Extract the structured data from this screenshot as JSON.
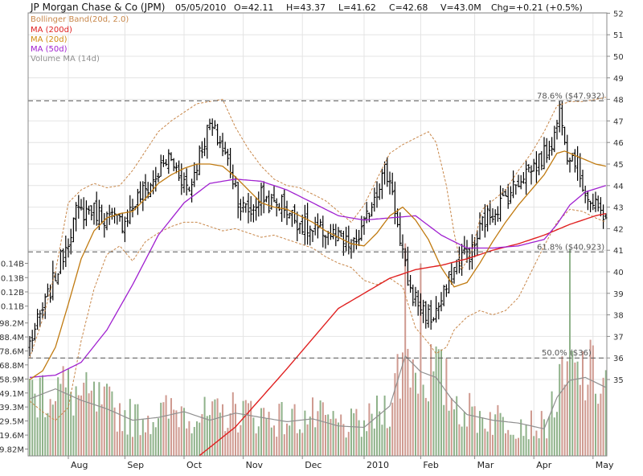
{
  "header": {
    "symbol_name": "JP Morgan Chase & Co (JPM)",
    "date": "05/05/2010",
    "open": "O=42.11",
    "high": "H=43.37",
    "low": "L=41.62",
    "close": "C=42.68",
    "volume": "V=43.0M",
    "change": "Chg=+0.21 (+0.5%)"
  },
  "legend": [
    {
      "label": "Bollinger Band(20d, 2.0)",
      "color": "#c8874a"
    },
    {
      "label": "MA (200d)",
      "color": "#e02020"
    },
    {
      "label": "MA (20d)",
      "color": "#d08a10"
    },
    {
      "label": "MA (50d)",
      "color": "#a020d0"
    },
    {
      "label": "Volume MA (14d)",
      "color": "#909090"
    }
  ],
  "fib_levels": [
    {
      "value": 47.932,
      "label": "78.6%   ($47.932)"
    },
    {
      "value": 40.923,
      "label": "61.8%   ($40.923)"
    },
    {
      "value": 36,
      "label": "50.0%   ($36)"
    }
  ],
  "chart_data": {
    "type": "ohlc",
    "title": "JP Morgan Chase & Co (JPM)",
    "price_axis": {
      "min": 35,
      "max": 52,
      "ticks": [
        "35",
        "36",
        "37",
        "38",
        "39",
        "40",
        "41",
        "42",
        "43",
        "44",
        "45",
        "46",
        "47",
        "48",
        "49",
        "50",
        "51",
        "52"
      ]
    },
    "volume_axis": {
      "ticks": [
        "9.82M",
        "19.6M",
        "29.5M",
        "39.3M",
        "49.1M",
        "58.9M",
        "68.8M",
        "78.6M",
        "88.4M",
        "98.2M",
        "0.11B",
        "0.12B",
        "0.13B",
        "0.14B"
      ]
    },
    "x_labels": [
      "Aug",
      "Sep",
      "Oct",
      "Nov",
      "Dec",
      "2010",
      "Feb",
      "Mar",
      "Apr",
      "May"
    ],
    "price_anchors": [
      [
        0,
        36.7
      ],
      [
        6,
        38.5
      ],
      [
        12,
        40.5
      ],
      [
        18,
        42.7
      ],
      [
        24,
        42.9
      ],
      [
        30,
        42.5
      ],
      [
        36,
        42.3
      ],
      [
        42,
        43.4
      ],
      [
        48,
        44.2
      ],
      [
        54,
        45.3
      ],
      [
        58,
        44.6
      ],
      [
        62,
        43.8
      ],
      [
        66,
        45.5
      ],
      [
        70,
        46.8
      ],
      [
        74,
        46.0
      ],
      [
        78,
        44.8
      ],
      [
        82,
        43.0
      ],
      [
        86,
        42.8
      ],
      [
        90,
        43.6
      ],
      [
        94,
        43.1
      ],
      [
        98,
        43.2
      ],
      [
        102,
        42.6
      ],
      [
        106,
        42.2
      ],
      [
        110,
        41.8
      ],
      [
        114,
        41.9
      ],
      [
        118,
        41.7
      ],
      [
        122,
        41.3
      ],
      [
        126,
        41.2
      ],
      [
        130,
        42.1
      ],
      [
        134,
        43.6
      ],
      [
        138,
        44.7
      ],
      [
        141,
        43.9
      ],
      [
        144,
        41.2
      ],
      [
        148,
        39.1
      ],
      [
        152,
        38.4
      ],
      [
        156,
        37.8
      ],
      [
        160,
        38.6
      ],
      [
        164,
        39.9
      ],
      [
        168,
        40.8
      ],
      [
        172,
        40.9
      ],
      [
        176,
        42.3
      ],
      [
        180,
        42.8
      ],
      [
        184,
        43.3
      ],
      [
        188,
        43.9
      ],
      [
        192,
        44.6
      ],
      [
        196,
        44.9
      ],
      [
        200,
        45.4
      ],
      [
        204,
        46.3
      ],
      [
        206,
        47.6
      ],
      [
        207,
        47.2
      ],
      [
        209,
        45.6
      ],
      [
        212,
        45.3
      ],
      [
        215,
        44.1
      ],
      [
        218,
        43.2
      ],
      [
        221,
        42.8
      ],
      [
        224,
        42.7
      ]
    ],
    "volume_anchors": [
      [
        0,
        45
      ],
      [
        10,
        52
      ],
      [
        20,
        44
      ],
      [
        30,
        38
      ],
      [
        40,
        30
      ],
      [
        50,
        32
      ],
      [
        60,
        36
      ],
      [
        70,
        30
      ],
      [
        80,
        35
      ],
      [
        90,
        32
      ],
      [
        100,
        29
      ],
      [
        110,
        31
      ],
      [
        120,
        26
      ],
      [
        130,
        25
      ],
      [
        140,
        40
      ],
      [
        146,
        75
      ],
      [
        152,
        64
      ],
      [
        158,
        60
      ],
      [
        164,
        45
      ],
      [
        170,
        34
      ],
      [
        180,
        30
      ],
      [
        190,
        28
      ],
      [
        200,
        24
      ],
      [
        205,
        46
      ],
      [
        210,
        58
      ],
      [
        216,
        60
      ],
      [
        224,
        53
      ]
    ],
    "ma_20": [
      [
        0,
        35.0
      ],
      [
        5,
        35.4
      ],
      [
        10,
        36.5
      ],
      [
        15,
        38.5
      ],
      [
        20,
        40.6
      ],
      [
        25,
        41.9
      ],
      [
        30,
        42.5
      ],
      [
        35,
        42.7
      ],
      [
        40,
        42.8
      ],
      [
        45,
        43.4
      ],
      [
        50,
        44.1
      ],
      [
        55,
        44.5
      ],
      [
        60,
        44.8
      ],
      [
        65,
        45.0
      ],
      [
        70,
        45.0
      ],
      [
        75,
        44.9
      ],
      [
        80,
        44.4
      ],
      [
        85,
        43.8
      ],
      [
        90,
        43.2
      ],
      [
        95,
        43.0
      ],
      [
        100,
        42.9
      ],
      [
        105,
        42.6
      ],
      [
        110,
        42.3
      ],
      [
        115,
        41.9
      ],
      [
        120,
        41.6
      ],
      [
        125,
        41.3
      ],
      [
        130,
        41.2
      ],
      [
        135,
        41.8
      ],
      [
        140,
        42.6
      ],
      [
        145,
        43.0
      ],
      [
        150,
        42.4
      ],
      [
        155,
        41.5
      ],
      [
        160,
        40.2
      ],
      [
        165,
        39.3
      ],
      [
        170,
        39.5
      ],
      [
        175,
        40.4
      ],
      [
        180,
        41.4
      ],
      [
        185,
        42.3
      ],
      [
        190,
        43.1
      ],
      [
        195,
        43.8
      ],
      [
        200,
        44.5
      ],
      [
        205,
        45.5
      ],
      [
        208,
        45.6
      ],
      [
        212,
        45.4
      ],
      [
        216,
        45.2
      ],
      [
        220,
        45.0
      ],
      [
        224,
        44.9
      ]
    ],
    "ma_50": [
      [
        0,
        35.1
      ],
      [
        10,
        35.2
      ],
      [
        20,
        35.8
      ],
      [
        30,
        37.3
      ],
      [
        40,
        39.4
      ],
      [
        50,
        41.7
      ],
      [
        60,
        43.2
      ],
      [
        70,
        44.1
      ],
      [
        80,
        44.3
      ],
      [
        90,
        44.2
      ],
      [
        100,
        43.8
      ],
      [
        110,
        43.2
      ],
      [
        120,
        42.6
      ],
      [
        130,
        42.4
      ],
      [
        140,
        42.5
      ],
      [
        150,
        42.6
      ],
      [
        160,
        41.7
      ],
      [
        170,
        41.1
      ],
      [
        180,
        41.1
      ],
      [
        190,
        41.2
      ],
      [
        200,
        41.5
      ],
      [
        205,
        42.2
      ],
      [
        210,
        43.1
      ],
      [
        216,
        43.7
      ],
      [
        224,
        44.0
      ]
    ],
    "ma_200": [
      [
        0,
        26.0
      ],
      [
        20,
        28.0
      ],
      [
        40,
        29.5
      ],
      [
        60,
        30.9
      ],
      [
        80,
        32.8
      ],
      [
        100,
        35.5
      ],
      [
        120,
        38.3
      ],
      [
        140,
        39.7
      ],
      [
        150,
        40.1
      ],
      [
        160,
        40.3
      ],
      [
        170,
        40.6
      ],
      [
        180,
        41.0
      ],
      [
        190,
        41.3
      ],
      [
        200,
        41.7
      ],
      [
        210,
        42.2
      ],
      [
        220,
        42.6
      ],
      [
        224,
        42.7
      ]
    ],
    "boll_upper": [
      [
        0,
        36.0
      ],
      [
        5,
        37.8
      ],
      [
        10,
        40.0
      ],
      [
        15,
        43.2
      ],
      [
        20,
        43.8
      ],
      [
        25,
        44.1
      ],
      [
        30,
        43.9
      ],
      [
        35,
        44.0
      ],
      [
        40,
        44.7
      ],
      [
        45,
        45.6
      ],
      [
        50,
        46.5
      ],
      [
        55,
        47.0
      ],
      [
        60,
        47.4
      ],
      [
        65,
        47.8
      ],
      [
        70,
        47.9
      ],
      [
        75,
        48.0
      ],
      [
        80,
        46.7
      ],
      [
        85,
        45.7
      ],
      [
        90,
        44.9
      ],
      [
        95,
        44.3
      ],
      [
        100,
        44.0
      ],
      [
        105,
        43.9
      ],
      [
        110,
        43.6
      ],
      [
        115,
        43.3
      ],
      [
        120,
        42.8
      ],
      [
        125,
        42.3
      ],
      [
        130,
        43.1
      ],
      [
        135,
        44.3
      ],
      [
        140,
        45.5
      ],
      [
        145,
        45.9
      ],
      [
        150,
        46.2
      ],
      [
        155,
        46.5
      ],
      [
        158,
        46.0
      ],
      [
        162,
        44.0
      ],
      [
        165,
        41.8
      ],
      [
        168,
        40.1
      ],
      [
        172,
        41.0
      ],
      [
        176,
        42.9
      ],
      [
        180,
        43.3
      ],
      [
        185,
        43.8
      ],
      [
        190,
        44.7
      ],
      [
        195,
        45.5
      ],
      [
        200,
        46.5
      ],
      [
        205,
        47.7
      ],
      [
        210,
        47.9
      ],
      [
        215,
        47.9
      ],
      [
        220,
        48.0
      ],
      [
        224,
        48.1
      ]
    ],
    "boll_lower": [
      [
        0,
        34.0
      ],
      [
        5,
        33.5
      ],
      [
        10,
        33.1
      ],
      [
        15,
        33.7
      ],
      [
        20,
        36.8
      ],
      [
        25,
        39.2
      ],
      [
        30,
        40.8
      ],
      [
        35,
        41.2
      ],
      [
        40,
        40.5
      ],
      [
        45,
        41.4
      ],
      [
        50,
        41.8
      ],
      [
        55,
        42.1
      ],
      [
        60,
        42.3
      ],
      [
        65,
        42.3
      ],
      [
        70,
        42.1
      ],
      [
        75,
        41.9
      ],
      [
        80,
        42.0
      ],
      [
        85,
        41.8
      ],
      [
        90,
        41.6
      ],
      [
        95,
        41.7
      ],
      [
        100,
        41.5
      ],
      [
        105,
        41.3
      ],
      [
        110,
        41.1
      ],
      [
        115,
        40.7
      ],
      [
        120,
        40.4
      ],
      [
        125,
        40.2
      ],
      [
        130,
        39.6
      ],
      [
        135,
        39.4
      ],
      [
        140,
        39.7
      ],
      [
        145,
        39.3
      ],
      [
        150,
        37.4
      ],
      [
        155,
        36.7
      ],
      [
        158,
        36.2
      ],
      [
        162,
        36.5
      ],
      [
        165,
        37.3
      ],
      [
        170,
        37.9
      ],
      [
        175,
        38.2
      ],
      [
        180,
        38.0
      ],
      [
        185,
        38.2
      ],
      [
        190,
        38.8
      ],
      [
        195,
        40.0
      ],
      [
        200,
        41.2
      ],
      [
        205,
        42.3
      ],
      [
        210,
        42.9
      ],
      [
        215,
        42.8
      ],
      [
        220,
        42.5
      ],
      [
        224,
        42.3
      ]
    ]
  }
}
